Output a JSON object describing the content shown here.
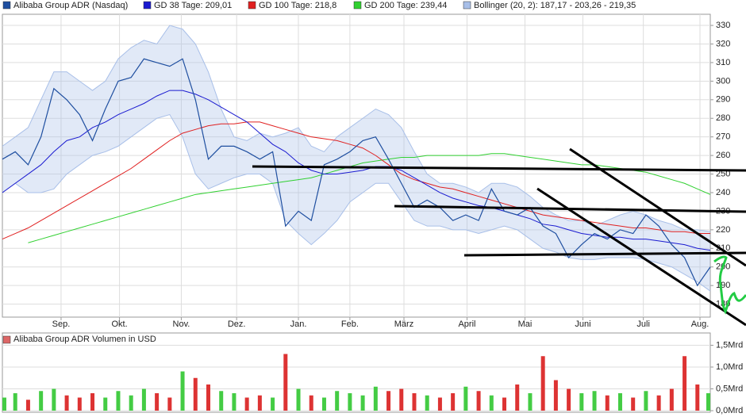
{
  "chart_data": [
    {
      "type": "line",
      "xlim": [
        0,
        55
      ],
      "xticks": [
        {
          "value": 4.56,
          "label": "Sep."
        },
        {
          "value": 9.1,
          "label": "Okt."
        },
        {
          "value": 13.9,
          "label": "Nov."
        },
        {
          "value": 18.2,
          "label": "Dez."
        },
        {
          "value": 23,
          "label": "Jan."
        },
        {
          "value": 27,
          "label": "Feb."
        },
        {
          "value": 31.2,
          "label": "März"
        },
        {
          "value": 36.1,
          "label": "April"
        },
        {
          "value": 40.6,
          "label": "Mai"
        },
        {
          "value": 45.1,
          "label": "Juni"
        },
        {
          "value": 49.8,
          "label": "Juli"
        },
        {
          "value": 54.2,
          "label": "Aug."
        }
      ],
      "ylim": [
        173,
        336
      ],
      "yticks": [
        180,
        190,
        200,
        210,
        220,
        230,
        240,
        250,
        260,
        270,
        280,
        290,
        300,
        310,
        320,
        330
      ],
      "grid": true,
      "band": {
        "name": "Bollinger (20, 2): 187,17 - 203,26 - 219,35",
        "color": "#a8bfe8",
        "upper": [
          265,
          270,
          275,
          290,
          305,
          305,
          300,
          295,
          300,
          312,
          318,
          322,
          320,
          330,
          328,
          320,
          305,
          285,
          270,
          268,
          272,
          270,
          272,
          275,
          265,
          262,
          270,
          275,
          280,
          285,
          282,
          275,
          262,
          250,
          245,
          245,
          243,
          240,
          245,
          245,
          243,
          238,
          232,
          228,
          225,
          225,
          222,
          225,
          228,
          230,
          228,
          225,
          223,
          220,
          220,
          219
        ],
        "lower": [
          240,
          245,
          240,
          240,
          242,
          250,
          255,
          260,
          262,
          265,
          270,
          275,
          280,
          282,
          270,
          250,
          242,
          245,
          248,
          250,
          250,
          245,
          225,
          218,
          212,
          218,
          225,
          235,
          240,
          245,
          245,
          235,
          225,
          222,
          222,
          220,
          220,
          218,
          220,
          222,
          220,
          215,
          210,
          208,
          205,
          204,
          204,
          205,
          205,
          205,
          204,
          202,
          200,
          196,
          192,
          187
        ]
      },
      "series": [
        {
          "name": "Alibaba Group ADR (Nasdaq)",
          "color": "#1f4fa0",
          "values": [
            258,
            262,
            255,
            270,
            296,
            290,
            282,
            268,
            285,
            300,
            302,
            312,
            310,
            308,
            312,
            290,
            258,
            265,
            265,
            262,
            258,
            262,
            222,
            230,
            225,
            255,
            258,
            262,
            268,
            270,
            258,
            245,
            232,
            236,
            232,
            225,
            228,
            225,
            242,
            230,
            228,
            232,
            222,
            218,
            205,
            212,
            218,
            215,
            220,
            218,
            228,
            222,
            212,
            205,
            190,
            200
          ]
        },
        {
          "name": "GD 38 Tage: 209,01",
          "color": "#1a1ad0",
          "values": [
            240,
            245,
            250,
            255,
            262,
            268,
            270,
            275,
            278,
            282,
            285,
            288,
            292,
            295,
            295,
            293,
            290,
            286,
            282,
            278,
            272,
            266,
            262,
            256,
            252,
            250,
            250,
            251,
            252,
            254,
            254,
            252,
            248,
            244,
            240,
            237,
            235,
            233,
            232,
            230,
            228,
            226,
            223,
            222,
            220,
            218,
            217,
            216,
            216,
            215,
            215,
            214,
            213,
            212,
            210,
            209
          ]
        },
        {
          "name": "GD 100 Tage: 218,8",
          "color": "#e02020",
          "values": [
            215,
            218,
            221,
            225,
            229,
            233,
            237,
            241,
            245,
            249,
            253,
            258,
            263,
            268,
            272,
            274,
            276,
            277,
            277,
            278,
            278,
            276,
            274,
            272,
            270,
            269,
            268,
            266,
            264,
            260,
            255,
            250,
            247,
            245,
            243,
            242,
            240,
            238,
            236,
            234,
            232,
            230,
            228,
            227,
            226,
            225,
            224,
            223,
            222,
            221,
            221,
            220,
            219,
            219,
            218,
            218
          ]
        },
        {
          "name": "GD 200 Tage: 239,44",
          "color": "#30d030",
          "values": [
            null,
            null,
            213,
            215,
            217,
            219,
            221,
            223,
            225,
            227,
            229,
            231,
            233,
            235,
            237,
            239,
            240,
            241,
            242,
            243,
            244,
            245,
            246,
            247,
            248,
            250,
            252,
            254,
            256,
            257,
            258,
            259,
            259,
            260,
            260,
            260,
            260,
            260,
            261,
            261,
            260,
            259,
            258,
            257,
            256,
            255,
            255,
            254,
            253,
            252,
            251,
            249,
            247,
            245,
            242,
            239
          ]
        }
      ]
    },
    {
      "type": "bar",
      "title": "Alibaba Group ADR Volumen in USD",
      "color": "#dd6666",
      "up_color": "#44cc44",
      "down_color": "#dd3333",
      "ylim": [
        0,
        1.6
      ],
      "yticks": [
        {
          "value": 0,
          "label": "0,0Mrd"
        },
        {
          "value": 0.5,
          "label": "0,5Mrd"
        },
        {
          "value": 1,
          "label": "1,0Mrd"
        },
        {
          "value": 1.5,
          "label": "1,5Mrd"
        }
      ],
      "values": [
        0.3,
        0.4,
        0.25,
        0.45,
        0.5,
        0.35,
        0.3,
        0.4,
        0.3,
        0.45,
        0.35,
        0.5,
        0.4,
        0.3,
        0.9,
        0.75,
        0.6,
        0.45,
        0.4,
        0.3,
        0.35,
        0.3,
        1.3,
        0.5,
        0.35,
        0.3,
        0.45,
        0.4,
        0.35,
        0.55,
        0.45,
        0.5,
        0.4,
        0.35,
        0.3,
        0.4,
        0.55,
        0.45,
        0.35,
        0.3,
        0.6,
        0.4,
        1.25,
        0.7,
        0.5,
        0.4,
        0.45,
        0.35,
        0.4,
        0.3,
        0.45,
        0.35,
        0.5,
        1.25,
        0.6,
        0.4
      ]
    }
  ]
}
